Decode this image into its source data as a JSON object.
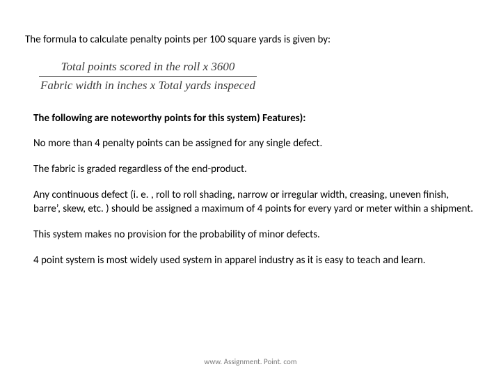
{
  "intro": "The formula to calculate penalty points per 100 square yards is given by:",
  "formula": {
    "numerator": "Total points scored in the roll x 3600",
    "denominator": "Fabric width in inches x Total yards inspeced"
  },
  "features_heading": "The following are noteworthy points for this system) Features):",
  "points": [
    "No more than 4 penalty points can be assigned for any single defect.",
    "The fabric is graded regardless of the end-product.",
    "Any continuous defect (i. e. , roll to roll shading, narrow or irregular width, creasing, uneven finish, barre’, skew, etc. ) should be assigned a maximum of 4 points for every yard or meter within a shipment.",
    "This system makes no provision for the probability of minor defects.",
    "4 point system is most widely used system in apparel industry as it is easy to teach and learn."
  ],
  "footer": "www. Assignment. Point. com"
}
